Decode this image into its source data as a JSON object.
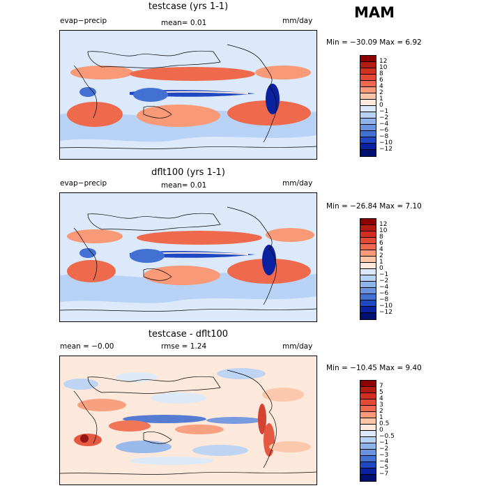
{
  "season": "MAM",
  "panels": [
    {
      "title": "testcase (yrs 1-1)",
      "left_label": "evap−precip",
      "center_label": "mean=   0.01",
      "right_label": "mm/day",
      "minmax": "Min = −30.09  Max =    6.92",
      "colorbar": {
        "labels": [
          "12",
          "10",
          "8",
          "6",
          "4",
          "2",
          "1",
          "0",
          "−1",
          "−2",
          "−4",
          "−6",
          "−8",
          "−10",
          "−12"
        ],
        "colors": [
          "#8b0000",
          "#b31c10",
          "#cf3020",
          "#e34a33",
          "#ef6a4c",
          "#f89a78",
          "#fcc5a8",
          "#fde9dc",
          "#dbe9fb",
          "#b7d2f5",
          "#8fb4ec",
          "#6a93e0",
          "#4370d3",
          "#2048c2",
          "#0a22a0",
          "#001070"
        ]
      }
    },
    {
      "title": "dflt100 (yrs 1-1)",
      "left_label": "evap−precip",
      "center_label": "mean=   0.01",
      "right_label": "mm/day",
      "minmax": "Min = −26.84  Max =    7.10",
      "colorbar": {
        "labels": [
          "12",
          "10",
          "8",
          "6",
          "4",
          "2",
          "1",
          "0",
          "−1",
          "−2",
          "−4",
          "−6",
          "−8",
          "−10",
          "−12"
        ],
        "colors": [
          "#8b0000",
          "#b31c10",
          "#cf3020",
          "#e34a33",
          "#ef6a4c",
          "#f89a78",
          "#fcc5a8",
          "#fde9dc",
          "#dbe9fb",
          "#b7d2f5",
          "#8fb4ec",
          "#6a93e0",
          "#4370d3",
          "#2048c2",
          "#0a22a0",
          "#001070"
        ]
      }
    },
    {
      "title": "testcase - dflt100",
      "left_label": "mean =   −0.00",
      "center_label": "rmse =    1.24",
      "right_label": "mm/day",
      "minmax": "Min = −10.45  Max =    9.40",
      "colorbar": {
        "labels": [
          "7",
          "5",
          "4",
          "3",
          "2",
          "1",
          "0.5",
          "0",
          "−0.5",
          "−1",
          "−2",
          "−3",
          "−4",
          "−5",
          "−7"
        ],
        "colors": [
          "#8b0000",
          "#b31c10",
          "#cf3020",
          "#e34a33",
          "#ef6a4c",
          "#f89a78",
          "#fcc5a8",
          "#fde9dc",
          "#dbe9fb",
          "#b7d2f5",
          "#8fb4ec",
          "#6a93e0",
          "#4370d3",
          "#2048c2",
          "#0a22a0",
          "#001070"
        ]
      }
    }
  ]
}
